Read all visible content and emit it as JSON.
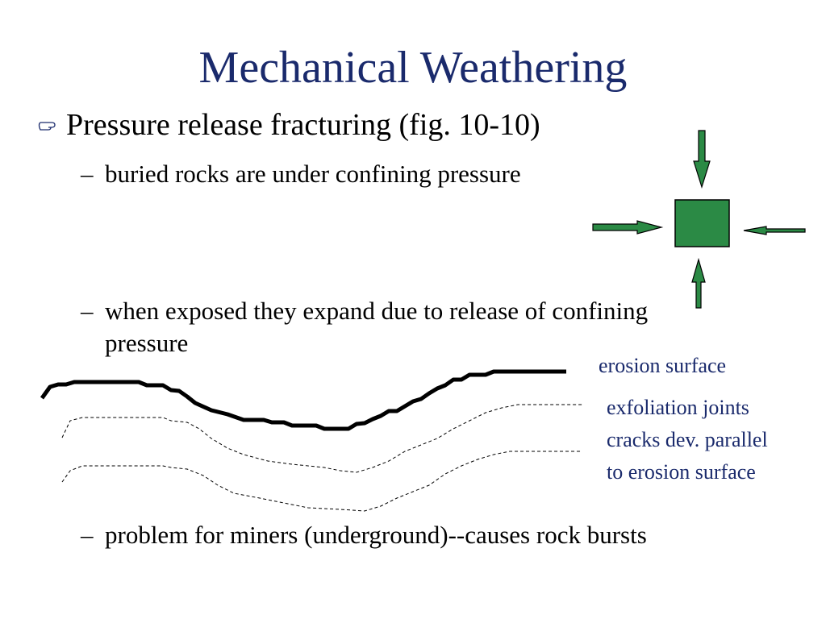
{
  "title": "Mechanical Weathering",
  "bullet": {
    "text": "Pressure release fracturing (fig. 10-10)",
    "sub_marker": "–",
    "sub_bullets": [
      "buried rocks are under confining pressure",
      "when exposed they expand due to release of confining pressure",
      "problem for miners (underground)--causes rock bursts"
    ]
  },
  "diagram": {
    "erosion_label": "erosion surface",
    "exfoliation_lines": [
      "exfoliation joints",
      "cracks dev. parallel",
      "to erosion surface"
    ]
  }
}
